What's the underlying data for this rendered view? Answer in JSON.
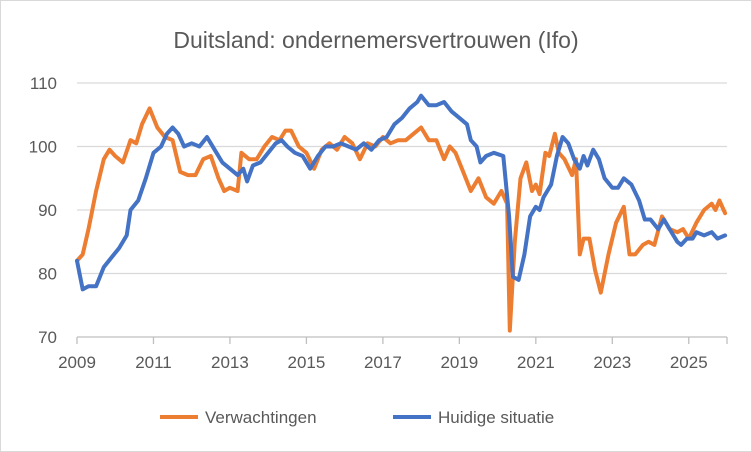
{
  "chart_data": {
    "type": "line",
    "title": "Duitsland: ondernemersvertrouwen (Ifo)",
    "xlabel": "",
    "ylabel": "",
    "xlim": [
      2009,
      2026
    ],
    "ylim": [
      70,
      110
    ],
    "yticks": [
      "70",
      "80",
      "90",
      "100",
      "110"
    ],
    "xticks": [
      "2009",
      "2011",
      "2013",
      "2015",
      "2017",
      "2019",
      "2021",
      "2023",
      "2025"
    ],
    "grid": true,
    "legend_position": "bottom",
    "series": [
      {
        "name": "Verwachtingen",
        "color": "#ed7d31",
        "points": [
          [
            2009.0,
            82
          ],
          [
            2009.15,
            83
          ],
          [
            2009.3,
            87
          ],
          [
            2009.5,
            93
          ],
          [
            2009.7,
            98
          ],
          [
            2009.85,
            99.5
          ],
          [
            2010.0,
            98.5
          ],
          [
            2010.2,
            97.5
          ],
          [
            2010.4,
            101
          ],
          [
            2010.55,
            100.5
          ],
          [
            2010.7,
            103.5
          ],
          [
            2010.9,
            106
          ],
          [
            2011.1,
            103
          ],
          [
            2011.3,
            101.5
          ],
          [
            2011.5,
            101
          ],
          [
            2011.7,
            96
          ],
          [
            2011.9,
            95.5
          ],
          [
            2012.1,
            95.5
          ],
          [
            2012.3,
            98
          ],
          [
            2012.5,
            98.5
          ],
          [
            2012.7,
            95
          ],
          [
            2012.85,
            93
          ],
          [
            2013.0,
            93.5
          ],
          [
            2013.2,
            93
          ],
          [
            2013.3,
            99
          ],
          [
            2013.5,
            98
          ],
          [
            2013.7,
            98
          ],
          [
            2013.9,
            100
          ],
          [
            2014.1,
            101.5
          ],
          [
            2014.3,
            101
          ],
          [
            2014.45,
            102.5
          ],
          [
            2014.6,
            102.5
          ],
          [
            2014.8,
            100
          ],
          [
            2015.0,
            99
          ],
          [
            2015.2,
            96.5
          ],
          [
            2015.4,
            99.5
          ],
          [
            2015.6,
            100.5
          ],
          [
            2015.8,
            99.5
          ],
          [
            2016.0,
            101.5
          ],
          [
            2016.2,
            100.5
          ],
          [
            2016.4,
            98
          ],
          [
            2016.6,
            100.5
          ],
          [
            2016.8,
            100
          ],
          [
            2017.0,
            101.5
          ],
          [
            2017.2,
            100.5
          ],
          [
            2017.4,
            101
          ],
          [
            2017.6,
            101
          ],
          [
            2017.8,
            102
          ],
          [
            2018.0,
            103
          ],
          [
            2018.2,
            101
          ],
          [
            2018.4,
            101
          ],
          [
            2018.6,
            98
          ],
          [
            2018.75,
            100
          ],
          [
            2018.9,
            99
          ],
          [
            2019.1,
            96
          ],
          [
            2019.3,
            93
          ],
          [
            2019.5,
            95
          ],
          [
            2019.7,
            92
          ],
          [
            2019.9,
            91
          ],
          [
            2020.1,
            93
          ],
          [
            2020.25,
            91
          ],
          [
            2020.32,
            71
          ],
          [
            2020.45,
            85
          ],
          [
            2020.6,
            95
          ],
          [
            2020.75,
            97.5
          ],
          [
            2020.9,
            93
          ],
          [
            2021.0,
            94
          ],
          [
            2021.1,
            92.5
          ],
          [
            2021.25,
            99
          ],
          [
            2021.35,
            98.5
          ],
          [
            2021.5,
            102
          ],
          [
            2021.6,
            99
          ],
          [
            2021.75,
            98
          ],
          [
            2021.95,
            95.5
          ],
          [
            2022.05,
            98
          ],
          [
            2022.15,
            83
          ],
          [
            2022.25,
            85.5
          ],
          [
            2022.4,
            85.5
          ],
          [
            2022.55,
            80.5
          ],
          [
            2022.7,
            77
          ],
          [
            2022.9,
            83
          ],
          [
            2023.1,
            88
          ],
          [
            2023.3,
            90.5
          ],
          [
            2023.45,
            83
          ],
          [
            2023.6,
            83
          ],
          [
            2023.8,
            84.5
          ],
          [
            2023.95,
            85
          ],
          [
            2024.1,
            84.5
          ],
          [
            2024.3,
            89
          ],
          [
            2024.5,
            87
          ],
          [
            2024.7,
            86.5
          ],
          [
            2024.85,
            87
          ],
          [
            2025.0,
            85.5
          ],
          [
            2025.2,
            88
          ],
          [
            2025.4,
            90
          ],
          [
            2025.6,
            91
          ],
          [
            2025.7,
            90
          ],
          [
            2025.8,
            91.5
          ],
          [
            2025.95,
            89.5
          ]
        ]
      },
      {
        "name": "Huidige situatie",
        "color": "#4472c4",
        "points": [
          [
            2009.0,
            82
          ],
          [
            2009.15,
            77.5
          ],
          [
            2009.3,
            78
          ],
          [
            2009.5,
            78
          ],
          [
            2009.7,
            81
          ],
          [
            2009.9,
            82.5
          ],
          [
            2010.1,
            84
          ],
          [
            2010.3,
            86
          ],
          [
            2010.4,
            90
          ],
          [
            2010.6,
            91.5
          ],
          [
            2010.8,
            95
          ],
          [
            2011.0,
            99
          ],
          [
            2011.2,
            100
          ],
          [
            2011.35,
            102
          ],
          [
            2011.5,
            103
          ],
          [
            2011.65,
            102
          ],
          [
            2011.8,
            100
          ],
          [
            2012.0,
            100.5
          ],
          [
            2012.2,
            100
          ],
          [
            2012.4,
            101.5
          ],
          [
            2012.6,
            99.5
          ],
          [
            2012.8,
            97.5
          ],
          [
            2013.0,
            96.5
          ],
          [
            2013.2,
            95.5
          ],
          [
            2013.35,
            96.5
          ],
          [
            2013.45,
            94.5
          ],
          [
            2013.6,
            97
          ],
          [
            2013.8,
            97.5
          ],
          [
            2014.0,
            99
          ],
          [
            2014.2,
            100.5
          ],
          [
            2014.35,
            101
          ],
          [
            2014.5,
            100
          ],
          [
            2014.7,
            99
          ],
          [
            2014.9,
            98.5
          ],
          [
            2015.1,
            96.5
          ],
          [
            2015.3,
            98.5
          ],
          [
            2015.5,
            100
          ],
          [
            2015.7,
            100
          ],
          [
            2015.9,
            100.5
          ],
          [
            2016.1,
            100
          ],
          [
            2016.3,
            99.5
          ],
          [
            2016.5,
            100.5
          ],
          [
            2016.7,
            99.5
          ],
          [
            2016.9,
            101
          ],
          [
            2017.1,
            101.5
          ],
          [
            2017.3,
            103.5
          ],
          [
            2017.5,
            104.5
          ],
          [
            2017.7,
            106
          ],
          [
            2017.9,
            107
          ],
          [
            2018.0,
            108
          ],
          [
            2018.2,
            106.5
          ],
          [
            2018.4,
            106.5
          ],
          [
            2018.6,
            107
          ],
          [
            2018.8,
            105.5
          ],
          [
            2019.0,
            104.5
          ],
          [
            2019.2,
            103.5
          ],
          [
            2019.3,
            101
          ],
          [
            2019.45,
            100
          ],
          [
            2019.55,
            97.5
          ],
          [
            2019.7,
            98.5
          ],
          [
            2019.9,
            99
          ],
          [
            2020.15,
            98.5
          ],
          [
            2020.3,
            89
          ],
          [
            2020.4,
            79.5
          ],
          [
            2020.55,
            79
          ],
          [
            2020.7,
            83
          ],
          [
            2020.85,
            89
          ],
          [
            2021.0,
            90.5
          ],
          [
            2021.1,
            90
          ],
          [
            2021.2,
            92
          ],
          [
            2021.4,
            94
          ],
          [
            2021.55,
            98.5
          ],
          [
            2021.7,
            101.5
          ],
          [
            2021.85,
            100.5
          ],
          [
            2022.0,
            98
          ],
          [
            2022.15,
            96.5
          ],
          [
            2022.25,
            98.5
          ],
          [
            2022.35,
            97
          ],
          [
            2022.5,
            99.5
          ],
          [
            2022.65,
            98
          ],
          [
            2022.8,
            95
          ],
          [
            2023.0,
            93.5
          ],
          [
            2023.15,
            93.5
          ],
          [
            2023.3,
            95
          ],
          [
            2023.5,
            94
          ],
          [
            2023.7,
            91.5
          ],
          [
            2023.85,
            88.5
          ],
          [
            2024.0,
            88.5
          ],
          [
            2024.2,
            87
          ],
          [
            2024.35,
            88.5
          ],
          [
            2024.5,
            87
          ],
          [
            2024.7,
            85
          ],
          [
            2024.8,
            84.5
          ],
          [
            2024.95,
            85.5
          ],
          [
            2025.1,
            85.5
          ],
          [
            2025.2,
            86.5
          ],
          [
            2025.4,
            86
          ],
          [
            2025.6,
            86.5
          ],
          [
            2025.75,
            85.5
          ],
          [
            2025.95,
            86
          ]
        ]
      }
    ]
  }
}
